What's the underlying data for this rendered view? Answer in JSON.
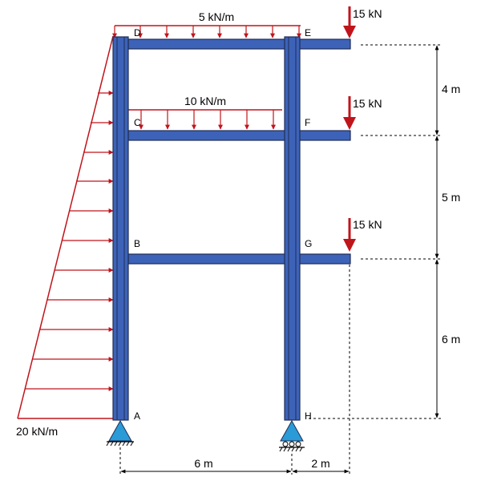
{
  "loads": {
    "roof_udl": "5 kN/m",
    "floor_udl": "10 kN/m",
    "point_top": "15 kN",
    "point_mid": "15 kN",
    "point_low": "15 kN",
    "lateral_base": "20 kN/m"
  },
  "nodes": {
    "a": "A",
    "b": "B",
    "c": "C",
    "d": "D",
    "e": "E",
    "f": "F",
    "g": "G",
    "h": "H"
  },
  "dims": {
    "h_top": "4 m",
    "h_mid": "5 m",
    "h_low": "6 m",
    "span_main": "6 m",
    "span_cant": "2 m"
  },
  "colors": {
    "member_fill": "#3d63b8",
    "member_stroke": "#1f2d57",
    "load": "#c0141b",
    "support": "#2a9bd6"
  }
}
